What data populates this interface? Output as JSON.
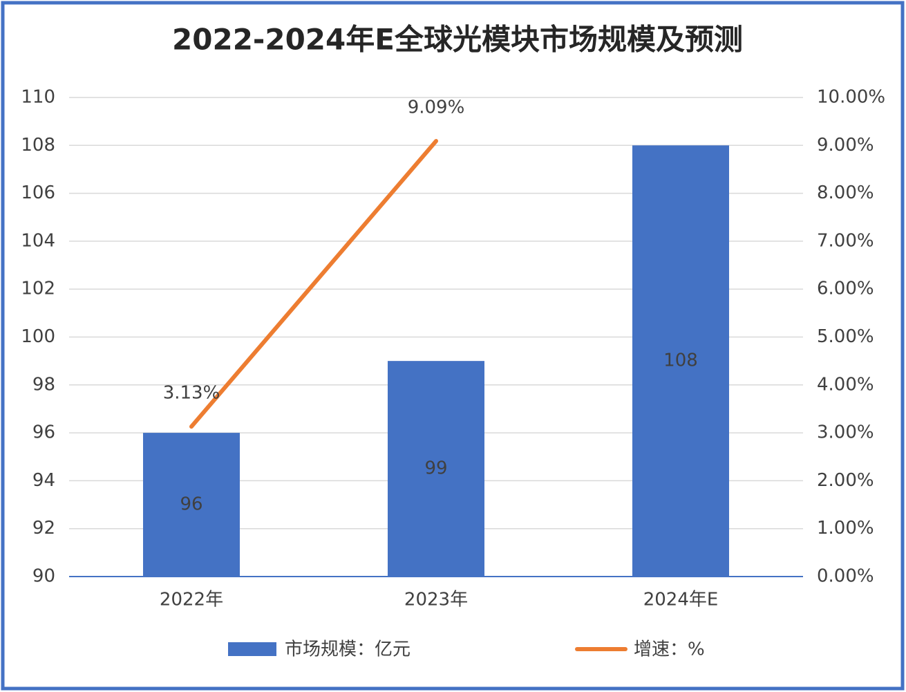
{
  "chart_data": {
    "type": "bar",
    "title": "2022-2024年E全球光模块市场规模及预测",
    "categories": [
      "2022年",
      "2023年",
      "2024年E"
    ],
    "series": [
      {
        "name": "市场规模：亿元",
        "type": "bar",
        "color": "#4472c4",
        "values": [
          96,
          99,
          108
        ]
      },
      {
        "name": "增速：%",
        "type": "line",
        "axis": "y2",
        "color": "#ed7d31",
        "values": [
          3.13,
          9.09,
          null
        ],
        "value_labels": [
          "3.13%",
          "9.09%",
          null
        ]
      }
    ],
    "ylim": [
      90,
      110
    ],
    "yticks": [
      90,
      92,
      94,
      96,
      98,
      100,
      102,
      104,
      106,
      108,
      110
    ],
    "y2lim": [
      0,
      10
    ],
    "y2ticks": [
      {
        "value": 0,
        "label": "0.00%"
      },
      {
        "value": 1,
        "label": "1.00%"
      },
      {
        "value": 2,
        "label": "2.00%"
      },
      {
        "value": 3,
        "label": "3.00%"
      },
      {
        "value": 4,
        "label": "4.00%"
      },
      {
        "value": 5,
        "label": "5.00%"
      },
      {
        "value": 6,
        "label": "6.00%"
      },
      {
        "value": 7,
        "label": "7.00%"
      },
      {
        "value": 8,
        "label": "8.00%"
      },
      {
        "value": 9,
        "label": "9.00%"
      },
      {
        "value": 10,
        "label": "10.00%"
      }
    ],
    "grid": true,
    "legend": "bottom"
  }
}
